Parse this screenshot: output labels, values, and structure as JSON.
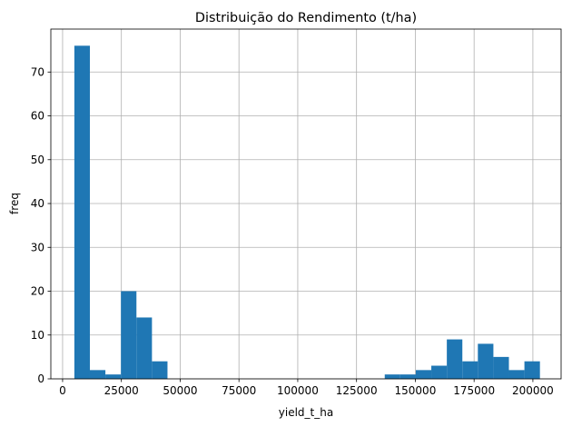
{
  "chart_data": {
    "type": "bar",
    "subtype": "histogram",
    "title": "Distribuição do Rendimento (t/ha)",
    "xlabel": "yield_t_ha",
    "ylabel": "freq",
    "xlim": [
      -5000,
      212000
    ],
    "ylim": [
      0,
      79.8
    ],
    "grid": true,
    "bar_color": "#1f77b4",
    "grid_color": "#b0b0b0",
    "xticks": [
      0,
      25000,
      50000,
      75000,
      100000,
      125000,
      150000,
      175000,
      200000
    ],
    "yticks": [
      0,
      10,
      20,
      30,
      40,
      50,
      60,
      70
    ],
    "bins": [
      {
        "start": 5000,
        "end": 11600,
        "count": 76
      },
      {
        "start": 11600,
        "end": 18200,
        "count": 2
      },
      {
        "start": 18200,
        "end": 24800,
        "count": 1
      },
      {
        "start": 24800,
        "end": 31400,
        "count": 20
      },
      {
        "start": 31400,
        "end": 38000,
        "count": 14
      },
      {
        "start": 38000,
        "end": 44600,
        "count": 4
      },
      {
        "start": 44600,
        "end": 51200,
        "count": 0
      },
      {
        "start": 51200,
        "end": 57800,
        "count": 0
      },
      {
        "start": 57800,
        "end": 64400,
        "count": 0
      },
      {
        "start": 64400,
        "end": 71000,
        "count": 0
      },
      {
        "start": 71000,
        "end": 77600,
        "count": 0
      },
      {
        "start": 77600,
        "end": 84200,
        "count": 0
      },
      {
        "start": 84200,
        "end": 90800,
        "count": 0
      },
      {
        "start": 90800,
        "end": 97400,
        "count": 0
      },
      {
        "start": 97400,
        "end": 104000,
        "count": 0
      },
      {
        "start": 104000,
        "end": 110600,
        "count": 0
      },
      {
        "start": 110600,
        "end": 117200,
        "count": 0
      },
      {
        "start": 117200,
        "end": 123800,
        "count": 0
      },
      {
        "start": 123800,
        "end": 130400,
        "count": 0
      },
      {
        "start": 130400,
        "end": 137000,
        "count": 0
      },
      {
        "start": 137000,
        "end": 143600,
        "count": 1
      },
      {
        "start": 143600,
        "end": 150200,
        "count": 1
      },
      {
        "start": 150200,
        "end": 156800,
        "count": 2
      },
      {
        "start": 156800,
        "end": 163400,
        "count": 3
      },
      {
        "start": 163400,
        "end": 170000,
        "count": 9
      },
      {
        "start": 170000,
        "end": 176600,
        "count": 4
      },
      {
        "start": 176600,
        "end": 183200,
        "count": 8
      },
      {
        "start": 183200,
        "end": 189800,
        "count": 5
      },
      {
        "start": 189800,
        "end": 196400,
        "count": 2
      },
      {
        "start": 196400,
        "end": 203000,
        "count": 4
      }
    ]
  }
}
